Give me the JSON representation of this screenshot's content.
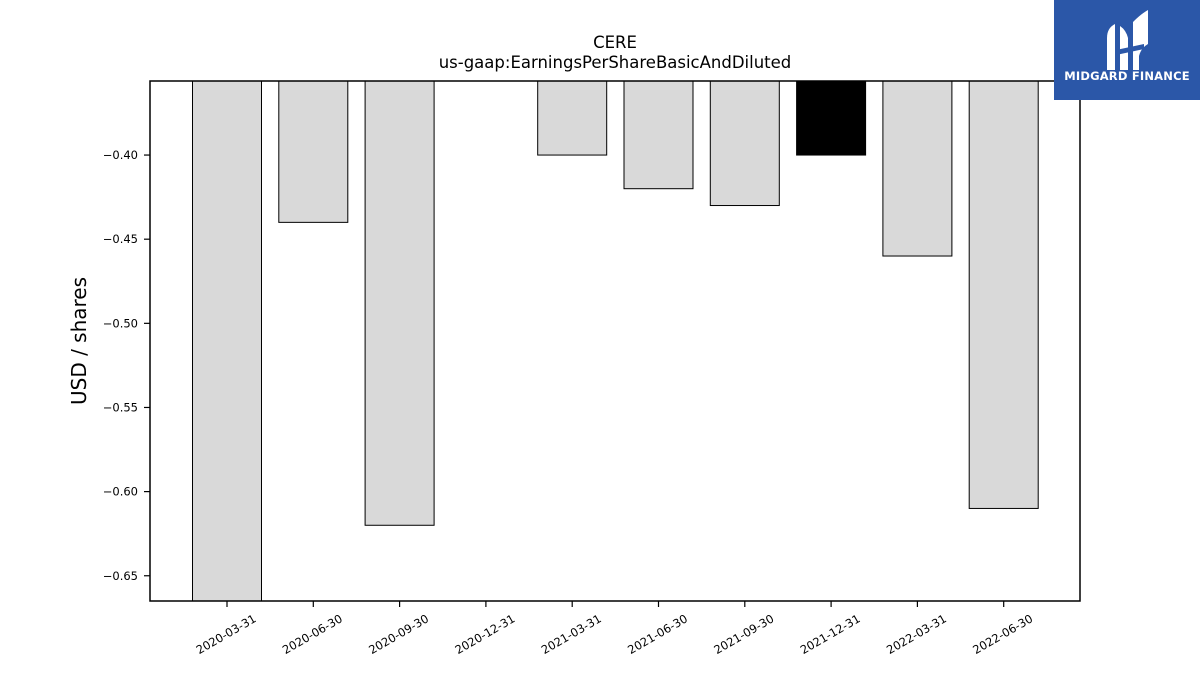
{
  "logo": {
    "text": "MIDGARD FINANCE",
    "background": "#2b57a8",
    "foreground": "#ffffff",
    "icon": "midgard-m-logo-icon"
  },
  "chart_data": {
    "type": "bar",
    "title": [
      "CERE",
      "us-gaap:EarningsPerShareBasicAndDiluted"
    ],
    "xlabel": "",
    "ylabel": "USD / shares",
    "ylim": [
      -0.665,
      -0.356
    ],
    "yticks": [
      -0.4,
      -0.45,
      -0.5,
      -0.55,
      -0.6,
      -0.65
    ],
    "ytick_labels": [
      "−0.40",
      "−0.45",
      "−0.50",
      "−0.55",
      "−0.60",
      "−0.65"
    ],
    "categories": [
      "2020-03-31",
      "2020-06-30",
      "2020-09-30",
      "2020-12-31",
      "2021-03-31",
      "2021-06-30",
      "2021-09-30",
      "2021-12-31",
      "2022-03-31",
      "2022-06-30"
    ],
    "values": [
      -0.665,
      -0.44,
      -0.62,
      null,
      -0.4,
      -0.42,
      -0.43,
      -0.4,
      -0.46,
      -0.61
    ],
    "highlight_index": 7,
    "bar_color": "#d9d9d9",
    "highlight_color": "#000000",
    "edge_color": "#000000",
    "grid": false
  }
}
